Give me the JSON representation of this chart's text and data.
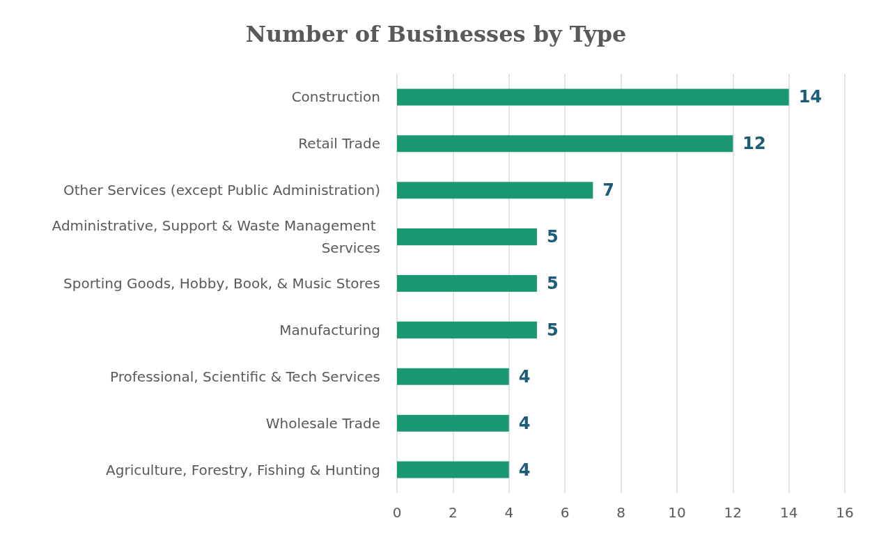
{
  "chart_data": {
    "type": "bar",
    "orientation": "horizontal",
    "title": "Number of Businesses by Type",
    "categories": [
      "Construction",
      "Retail Trade",
      "Other Services (except Public Administration)",
      "Administrative, Support & Waste Management Services",
      "Sporting Goods, Hobby, Book, & Music Stores",
      "Manufacturing",
      "Professional, Scientific & Tech Services",
      "Wholesale Trade",
      "Agriculture, Forestry, Fishing & Hunting"
    ],
    "values": [
      14,
      12,
      7,
      5,
      5,
      5,
      4,
      4,
      4
    ],
    "color": "#1a9874",
    "xlim": [
      0,
      16
    ],
    "xticks": [
      0,
      2,
      4,
      6,
      8,
      10,
      12,
      14,
      16
    ],
    "grid": "x",
    "data_labels": true
  }
}
